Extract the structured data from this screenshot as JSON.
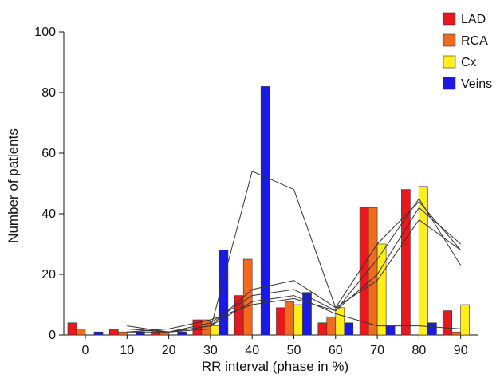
{
  "chart_data": {
    "type": "bar",
    "xlabel": "RR interval (phase in %)",
    "ylabel": "Number of patients",
    "ylim": [
      0,
      100
    ],
    "yticks": [
      0,
      20,
      40,
      60,
      80,
      100
    ],
    "categories": [
      "0",
      "10",
      "20",
      "30",
      "40",
      "50",
      "60",
      "70",
      "80",
      "90"
    ],
    "legend_position": "top-right",
    "grid": false,
    "series": [
      {
        "name": "LAD",
        "color": "#e8191e",
        "values": [
          4,
          2,
          1,
          5,
          13,
          9,
          4,
          42,
          48,
          8
        ]
      },
      {
        "name": "RCA",
        "color": "#f26b1d",
        "values": [
          2,
          1,
          1,
          5,
          25,
          11,
          6,
          42,
          0,
          1
        ]
      },
      {
        "name": "Cx",
        "color": "#ffee1a",
        "values": [
          0,
          0,
          0,
          3,
          0,
          10,
          9,
          30,
          49,
          10
        ]
      },
      {
        "name": "Veins",
        "color": "#1a1ae6",
        "values": [
          1,
          1,
          1,
          28,
          82,
          14,
          4,
          3,
          4,
          0
        ]
      }
    ],
    "trend_lines": [
      {
        "x": [
          10,
          20,
          30,
          40,
          50,
          60,
          70,
          80,
          90
        ],
        "y": [
          3,
          1,
          2,
          54,
          48,
          9,
          30,
          44,
          28
        ]
      },
      {
        "x": [
          10,
          20,
          30,
          40,
          50,
          60,
          70,
          80,
          90
        ],
        "y": [
          2,
          1,
          3,
          15,
          18,
          9,
          18,
          38,
          28
        ]
      },
      {
        "x": [
          10,
          20,
          30,
          40,
          50,
          60,
          70,
          80,
          90
        ],
        "y": [
          2,
          1,
          4,
          13,
          15,
          8,
          20,
          42,
          30
        ]
      },
      {
        "x": [
          10,
          20,
          30,
          40,
          50,
          60,
          70,
          80,
          90
        ],
        "y": [
          1,
          1,
          3,
          11,
          13,
          7,
          3,
          3,
          2
        ]
      },
      {
        "x": [
          10,
          20,
          30,
          40,
          50,
          60,
          70,
          80,
          90
        ],
        "y": [
          1,
          2,
          5,
          10,
          12,
          8,
          25,
          45,
          23
        ]
      }
    ]
  }
}
